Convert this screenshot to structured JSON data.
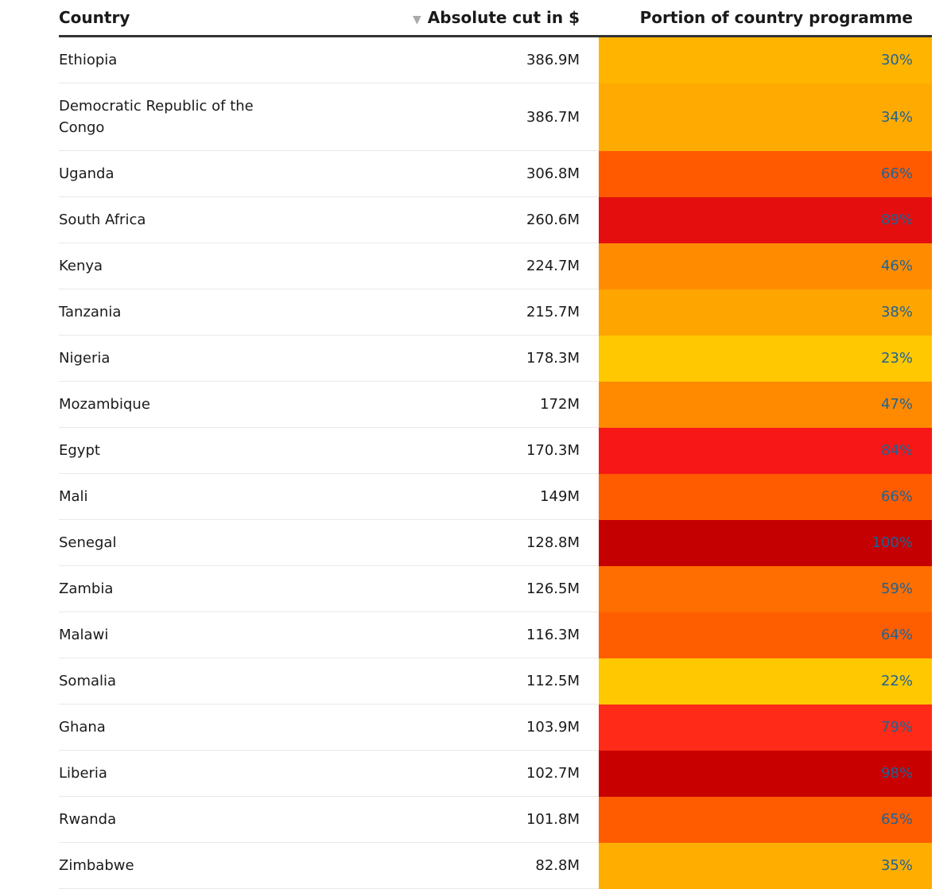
{
  "columns": {
    "country": "Country",
    "cut": "Absolute cut in $",
    "portion": "Portion of country programme"
  },
  "sort_icon": "triangle-down-icon",
  "rows": [
    {
      "country": "Ethiopia",
      "cut": "386.9M",
      "portion": "30%",
      "color": "#FFB400"
    },
    {
      "country": "Democratic Republic of the Congo",
      "cut": "386.7M",
      "portion": "34%",
      "color": "#FFAA00"
    },
    {
      "country": "Uganda",
      "cut": "306.8M",
      "portion": "66%",
      "color": "#FF5A00"
    },
    {
      "country": "South Africa",
      "cut": "260.6M",
      "portion": "89%",
      "color": "#E50E0E"
    },
    {
      "country": "Kenya",
      "cut": "224.7M",
      "portion": "46%",
      "color": "#FF8C00"
    },
    {
      "country": "Tanzania",
      "cut": "215.7M",
      "portion": "38%",
      "color": "#FFA500"
    },
    {
      "country": "Nigeria",
      "cut": "178.3M",
      "portion": "23%",
      "color": "#FFC800"
    },
    {
      "country": "Mozambique",
      "cut": "172M",
      "portion": "47%",
      "color": "#FF8A00"
    },
    {
      "country": "Egypt",
      "cut": "170.3M",
      "portion": "84%",
      "color": "#F71717"
    },
    {
      "country": "Mali",
      "cut": "149M",
      "portion": "66%",
      "color": "#FF5C00"
    },
    {
      "country": "Senegal",
      "cut": "128.8M",
      "portion": "100%",
      "color": "#C40000"
    },
    {
      "country": "Zambia",
      "cut": "126.5M",
      "portion": "59%",
      "color": "#FF6E00"
    },
    {
      "country": "Malawi",
      "cut": "116.3M",
      "portion": "64%",
      "color": "#FF5E00"
    },
    {
      "country": "Somalia",
      "cut": "112.5M",
      "portion": "22%",
      "color": "#FFC800"
    },
    {
      "country": "Ghana",
      "cut": "103.9M",
      "portion": "79%",
      "color": "#FF2A17"
    },
    {
      "country": "Liberia",
      "cut": "102.7M",
      "portion": "98%",
      "color": "#C80000"
    },
    {
      "country": "Rwanda",
      "cut": "101.8M",
      "portion": "65%",
      "color": "#FF5C00"
    },
    {
      "country": "Zimbabwe",
      "cut": "82.8M",
      "portion": "35%",
      "color": "#FFAE00"
    }
  ]
}
